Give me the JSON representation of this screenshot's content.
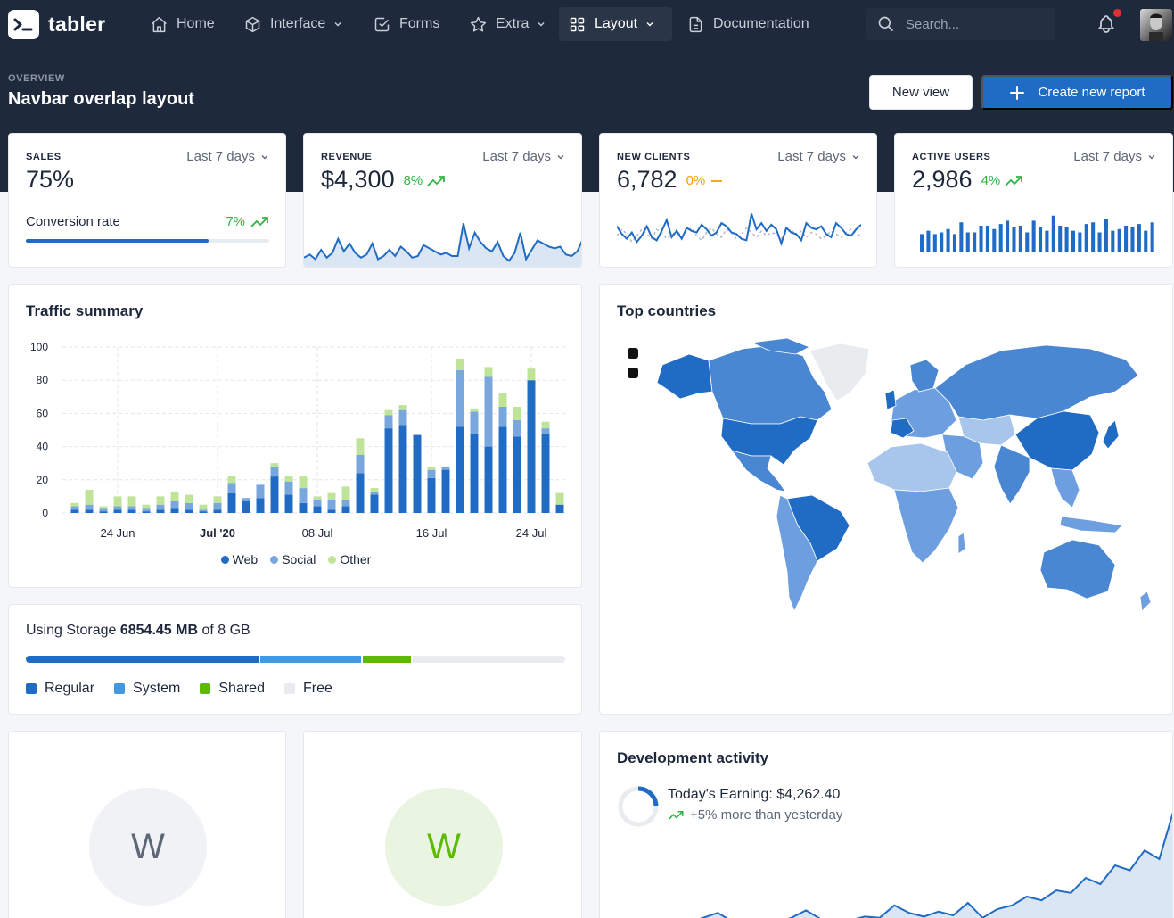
{
  "brand": {
    "name": "tabler"
  },
  "nav": {
    "items": [
      {
        "label": "Home",
        "icon": "home-icon"
      },
      {
        "label": "Interface",
        "icon": "package-icon"
      },
      {
        "label": "Forms",
        "icon": "checkbox-icon"
      },
      {
        "label": "Extra",
        "icon": "star-icon"
      },
      {
        "label": "Layout",
        "icon": "layout-icon"
      },
      {
        "label": "Documentation",
        "icon": "file-icon"
      }
    ],
    "active": "Layout",
    "search_placeholder": "Search..."
  },
  "header": {
    "pretitle": "OVERVIEW",
    "title": "Navbar overlap layout",
    "new_view": "New view",
    "create_report": "Create new report"
  },
  "kpis": [
    {
      "label": "SALES",
      "period": "Last 7 days",
      "value": "75%",
      "sub_label": "Conversion rate",
      "sub_trend": "7%",
      "progress": 0.75
    },
    {
      "label": "REVENUE",
      "period": "Last 7 days",
      "value": "$4,300",
      "trend": "8%"
    },
    {
      "label": "NEW CLIENTS",
      "period": "Last 7 days",
      "value": "6,782",
      "trend": "0%"
    },
    {
      "label": "ACTIVE USERS",
      "period": "Last 7 days",
      "value": "2,986",
      "trend": "4%"
    }
  ],
  "traffic": {
    "title": "Traffic summary"
  },
  "countries": {
    "title": "Top countries"
  },
  "storage": {
    "prefix": "Using Storage",
    "used": "6854.45 MB",
    "of": "of",
    "total": "8 GB",
    "segments": [
      {
        "name": "Regular",
        "fraction": 0.435,
        "color": "#206bc4"
      },
      {
        "name": "System",
        "fraction": 0.19,
        "color": "#4299e1"
      },
      {
        "name": "Shared",
        "fraction": 0.09,
        "color": "#5eba00"
      },
      {
        "name": "Free",
        "fraction": 0.285,
        "color": "#e9ecef"
      }
    ]
  },
  "avatars": [
    {
      "letter": "W"
    },
    {
      "letter": "W"
    }
  ],
  "dev": {
    "title": "Development activity",
    "earning": "Today's Earning: $4,262.40",
    "more": "+5% more than yesterday"
  },
  "colors": {
    "primary": "#206bc4",
    "success": "#2fb344",
    "warning": "#f59f00",
    "hero": "#1e293b"
  },
  "chart_data": [
    {
      "type": "bar",
      "title": "Traffic summary",
      "stacked": true,
      "x_tick_labels": [
        "24 Jun",
        "Jul '20",
        "08 Jul",
        "16 Jul",
        "24 Jul"
      ],
      "ylim": [
        0,
        100
      ],
      "yticks": [
        0,
        20,
        40,
        60,
        80,
        100
      ],
      "legend": "bottom",
      "series": [
        {
          "name": "Web",
          "color": "#206bc4",
          "values": [
            2,
            2,
            1,
            2,
            2,
            1,
            2,
            3,
            2,
            1,
            2,
            12,
            7,
            9,
            22,
            11,
            6,
            4,
            2,
            4,
            24,
            11,
            51,
            53,
            47,
            21,
            26,
            52,
            48,
            40,
            52,
            46,
            80,
            48,
            5
          ]
        },
        {
          "name": "Social",
          "color": "#79a6dc",
          "values": [
            2,
            3,
            2,
            2,
            2,
            2,
            3,
            4,
            4,
            1,
            4,
            6,
            2,
            8,
            6,
            8,
            9,
            4,
            6,
            4,
            11,
            2,
            8,
            9,
            0,
            5,
            2,
            34,
            13,
            42,
            12,
            10,
            0,
            3,
            0
          ]
        },
        {
          "name": "Other",
          "color": "#bfe399",
          "values": [
            2,
            9,
            1,
            6,
            6,
            2,
            5,
            6,
            5,
            3,
            4,
            4,
            0,
            0,
            2,
            3,
            7,
            2,
            4,
            8,
            10,
            2,
            3,
            3,
            0,
            2,
            0,
            7,
            2,
            6,
            8,
            8,
            7,
            4,
            7
          ]
        }
      ]
    },
    {
      "type": "area",
      "title": "",
      "x": [
        0,
        1,
        2,
        3,
        4,
        5,
        6,
        7,
        8,
        9,
        10,
        11,
        12,
        13,
        14,
        15,
        16,
        17,
        18,
        19,
        20,
        21,
        22,
        23,
        24,
        25,
        26,
        27,
        28,
        29,
        30,
        31,
        32,
        33,
        34,
        35,
        36,
        37,
        38,
        39,
        40,
        41,
        42,
        43,
        44,
        45,
        46,
        47,
        48,
        49
      ],
      "values": [
        37,
        39,
        36,
        42,
        37,
        40,
        49,
        41,
        46,
        40,
        37,
        39,
        46,
        36,
        38,
        42,
        38,
        44,
        41,
        37,
        38,
        45,
        43,
        41,
        39,
        40,
        38,
        38,
        59,
        43,
        53,
        47,
        43,
        41,
        47,
        38,
        35,
        40,
        53,
        36,
        42,
        48,
        46,
        44,
        43,
        44,
        39,
        38,
        41,
        49
      ]
    },
    {
      "type": "line",
      "title": "",
      "x": [
        0,
        1,
        2,
        3,
        4,
        5,
        6,
        7,
        8,
        9,
        10,
        11,
        12,
        13,
        14,
        15,
        16,
        17,
        18,
        19,
        20,
        21,
        22,
        23,
        24,
        25,
        26,
        27,
        28,
        29,
        30,
        31,
        32,
        33,
        34,
        35,
        36,
        37,
        38,
        39,
        40,
        41,
        42,
        43,
        44,
        45,
        46,
        47,
        48,
        49
      ],
      "series": [
        {
          "color": "#206bc4",
          "values": [
            20,
            15,
            12,
            16,
            10,
            14,
            20,
            13,
            11,
            17,
            24,
            13,
            17,
            12,
            19,
            17,
            16,
            21,
            18,
            14,
            16,
            22,
            20,
            16,
            15,
            12,
            11,
            28,
            18,
            22,
            17,
            21,
            18,
            9,
            19,
            16,
            15,
            11,
            22,
            19,
            18,
            20,
            15,
            13,
            22,
            19,
            15,
            14,
            18,
            21
          ]
        },
        {
          "color": "#a9b1bd",
          "dashed": true,
          "values": [
            14,
            18,
            15,
            10,
            14,
            18,
            15,
            12,
            18,
            16,
            12,
            14,
            18,
            13,
            17,
            19,
            14,
            11,
            16,
            19,
            15,
            13,
            18,
            16,
            12,
            15,
            19,
            16,
            13,
            17,
            14,
            16,
            15,
            12,
            16,
            18,
            14,
            17,
            13,
            16,
            15,
            12,
            14,
            17,
            15,
            13,
            16,
            18,
            15,
            14
          ]
        }
      ]
    },
    {
      "type": "bar",
      "title": "",
      "values": [
        11,
        13,
        11,
        12,
        14,
        11,
        18,
        12,
        12,
        16,
        16,
        14,
        17,
        19,
        15,
        16,
        12,
        19,
        15,
        13,
        22,
        16,
        15,
        13,
        12,
        17,
        18,
        12,
        20,
        13,
        14,
        16,
        15,
        17,
        13,
        18
      ]
    },
    {
      "type": "area",
      "title": "Development activity",
      "x": [
        0,
        1,
        2,
        3,
        4,
        5,
        6,
        7,
        8,
        9,
        10,
        11,
        12,
        13,
        14,
        15,
        16,
        17,
        18,
        19,
        20,
        21,
        22,
        23,
        24,
        25,
        26,
        27,
        28,
        29,
        30,
        31,
        32,
        33,
        34,
        35,
        36,
        37,
        38,
        39
      ],
      "values": [
        3,
        4,
        2,
        5,
        3,
        6,
        4,
        8,
        12,
        5,
        3,
        5,
        4,
        8,
        14,
        7,
        5,
        6,
        9,
        8,
        18,
        12,
        9,
        13,
        10,
        20,
        8,
        15,
        18,
        25,
        22,
        30,
        28,
        40,
        35,
        50,
        46,
        62,
        55,
        95
      ]
    }
  ]
}
